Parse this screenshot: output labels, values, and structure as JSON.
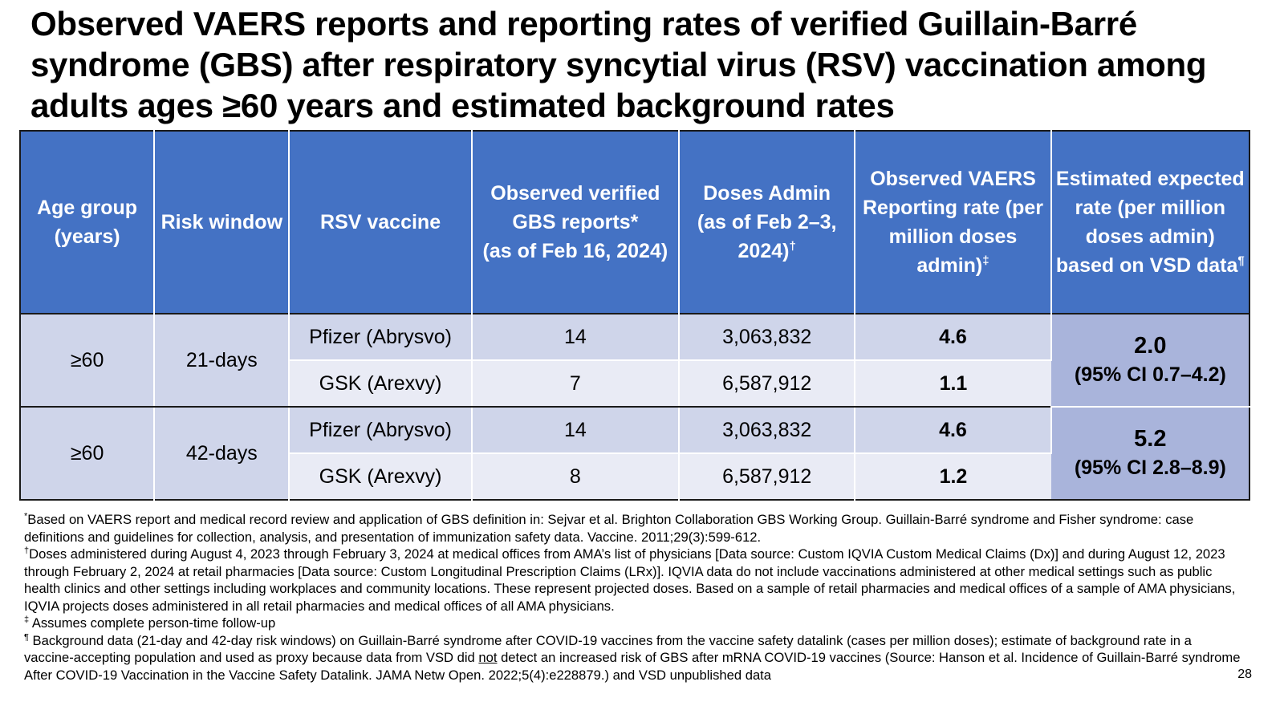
{
  "title": "Observed VAERS reports and reporting rates of verified Guillain-Barré syndrome (GBS) after respiratory syncytial virus (RSV) vaccination among adults ages ≥60 years and estimated background rates",
  "table": {
    "headers": {
      "age_group": "Age group (years)",
      "risk_window": "Risk window",
      "rsv_vaccine": "RSV vaccine",
      "observed_reports": "Observed verified GBS reports*",
      "observed_reports_sub": "(as of Feb 16, 2024)",
      "doses": "Doses Admin",
      "doses_sub": "(as of Feb 2–3, 2024)",
      "doses_mark": "†",
      "reporting_rate": "Observed VAERS Reporting rate (per million doses admin)",
      "reporting_rate_mark": "‡",
      "expected_rate": "Estimated expected rate (per million doses admin) based on VSD data",
      "expected_rate_mark": "¶"
    },
    "groups": [
      {
        "age_group": "≥60",
        "risk_window": "21-days",
        "expected_rate": "2.0",
        "expected_ci": "(95% CI 0.7–4.2)",
        "rows": [
          {
            "vaccine": "Pfizer (Abrysvo)",
            "reports": "14",
            "doses": "3,063,832",
            "rate": "4.6"
          },
          {
            "vaccine": "GSK (Arexvy)",
            "reports": "7",
            "doses": "6,587,912",
            "rate": "1.1"
          }
        ]
      },
      {
        "age_group": "≥60",
        "risk_window": "42-days",
        "expected_rate": "5.2",
        "expected_ci": "(95% CI 2.8–8.9)",
        "rows": [
          {
            "vaccine": "Pfizer (Abrysvo)",
            "reports": "14",
            "doses": "3,063,832",
            "rate": "4.6"
          },
          {
            "vaccine": "GSK (Arexvy)",
            "reports": "8",
            "doses": "6,587,912",
            "rate": "1.2"
          }
        ]
      }
    ]
  },
  "footnotes": {
    "star_mark": "*",
    "star": "Based on VAERS report and medical record review and application of GBS definition in: Sejvar et al. Brighton Collaboration GBS Working Group. Guillain-Barré syndrome and Fisher syndrome: case definitions and guidelines for collection, analysis, and presentation of immunization safety data. Vaccine. 2011;29(3):599-612.",
    "dagger_mark": "†",
    "dagger": "Doses administered during August 4, 2023 through February 3, 2024 at medical offices from AMA’s list of physicians [Data source: Custom IQVIA Custom Medical Claims (Dx)] and during August 12, 2023 through February 2, 2024 at retail pharmacies [Data source: Custom Longitudinal Prescription Claims (LRx)]. IQVIA data do not include vaccinations administered at other medical settings such as public health clinics and other settings including workplaces and community locations. These represent projected doses. Based on a sample of retail pharmacies and medical offices of a sample of AMA physicians, IQVIA projects doses administered in all retail pharmacies and medical offices of all AMA physicians.",
    "ddagger_mark": "‡",
    "ddagger": " Assumes complete person-time follow-up",
    "para_mark": "¶",
    "para_before": " Background data (21-day and 42-day risk windows) on Guillain-Barré syndrome after COVID-19 vaccines from the vaccine safety datalink (cases per million doses); estimate of background rate in a vaccine-accepting population and used as proxy because data from VSD did ",
    "para_not": "not",
    "para_after": " detect an increased risk of GBS after mRNA COVID-19 vaccines (Source: Hanson et al. Incidence of Guillain-Barré syndrome After COVID-19 Vaccination in the Vaccine Safety Datalink. JAMA Netw Open. 2022;5(4):e228879.) and VSD unpublished data"
  },
  "page_number": "28"
}
